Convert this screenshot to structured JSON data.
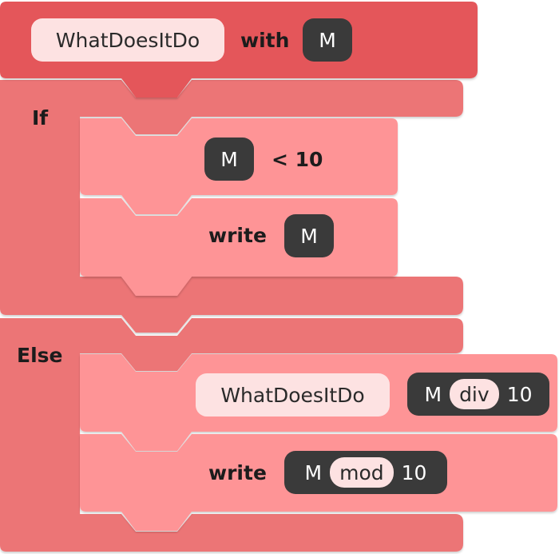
{
  "function_block": {
    "name": "WhatDoesItDo",
    "with_label": "with",
    "param": "M"
  },
  "if_block": {
    "label": "If",
    "condition": {
      "var": "M",
      "op_text": "< 10"
    },
    "write": {
      "label": "write",
      "var": "M"
    }
  },
  "else_block": {
    "label": "Else",
    "call": {
      "name": "WhatDoesItDo",
      "arg": {
        "var": "M",
        "op": "div",
        "num": "10"
      }
    },
    "write": {
      "label": "write",
      "expr": {
        "var": "M",
        "op": "mod",
        "num": "10"
      }
    }
  },
  "colors": {
    "header_block": "#e4575a",
    "container_block": "#ec7576",
    "inner_block": "#fe9496",
    "dark_chip": "#3a3a3a",
    "light_chip": "#fde2e2"
  }
}
